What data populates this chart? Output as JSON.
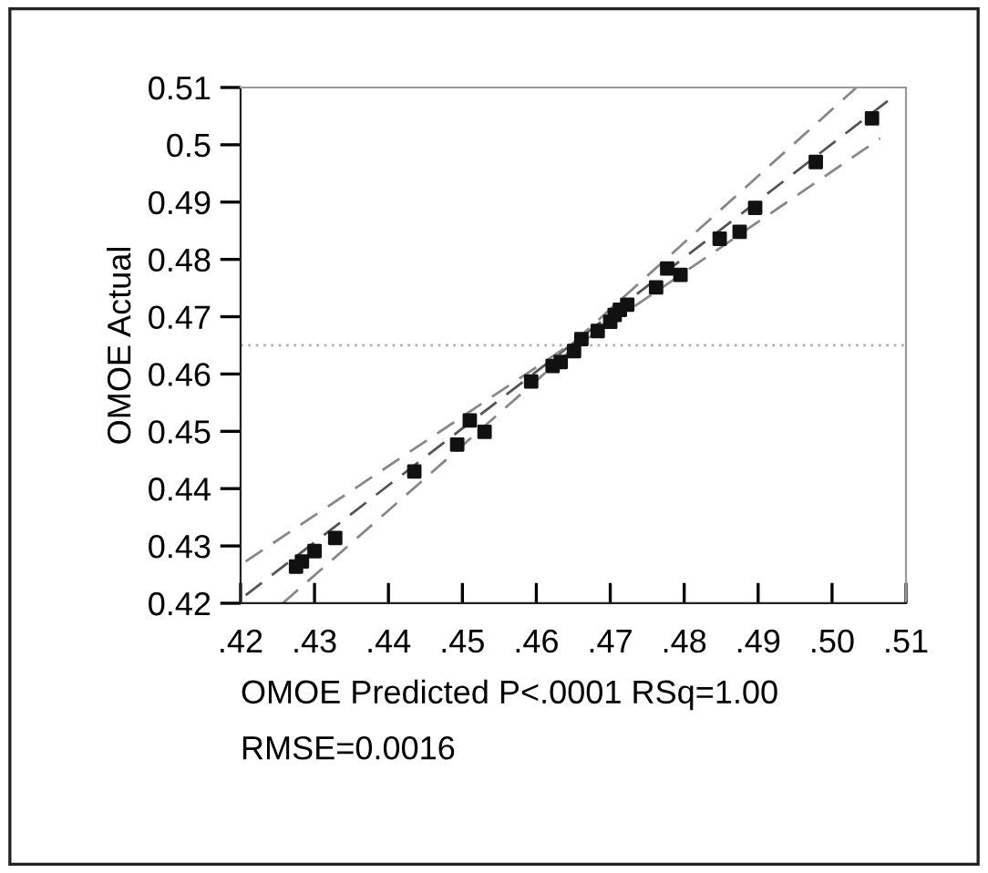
{
  "chart_data": {
    "type": "scatter",
    "xlabel": "OMOE Predicted P<.0001 RSq=1.00",
    "ylabel": "OMOE Actual",
    "annotations": [
      "RMSE=0.0016"
    ],
    "xlim": [
      0.42,
      0.51
    ],
    "ylim": [
      0.42,
      0.51
    ],
    "xticks": [
      {
        "value": 0.42,
        "label": ".42"
      },
      {
        "value": 0.43,
        "label": ".43"
      },
      {
        "value": 0.44,
        "label": ".44"
      },
      {
        "value": 0.45,
        "label": ".45"
      },
      {
        "value": 0.46,
        "label": ".46"
      },
      {
        "value": 0.47,
        "label": ".47"
      },
      {
        "value": 0.48,
        "label": ".48"
      },
      {
        "value": 0.49,
        "label": ".49"
      },
      {
        "value": 0.5,
        "label": ".50"
      },
      {
        "value": 0.51,
        "label": ".51"
      }
    ],
    "yticks": [
      0.42,
      0.43,
      0.44,
      0.45,
      0.46,
      0.47,
      0.48,
      0.49,
      0.5,
      0.51
    ],
    "grid": false,
    "legend": false,
    "marker": "square",
    "ref_lines": [
      {
        "axis": "y",
        "value": 0.465,
        "color": "#b0b0b0",
        "line_style": "dotted"
      }
    ],
    "series": [
      {
        "color": "#111111",
        "x": [
          0.4275,
          0.4283,
          0.43,
          0.4328,
          0.4435,
          0.4493,
          0.451,
          0.453,
          0.4593,
          0.4622,
          0.4633,
          0.4651,
          0.4661,
          0.4683,
          0.47,
          0.4706,
          0.4713,
          0.4723,
          0.4762,
          0.4777,
          0.4795,
          0.4848,
          0.4875,
          0.4896,
          0.4978,
          0.5054
        ],
        "values": [
          0.4264,
          0.4273,
          0.4291,
          0.4314,
          0.443,
          0.4477,
          0.4519,
          0.4499,
          0.4587,
          0.4614,
          0.4621,
          0.464,
          0.4661,
          0.4675,
          0.4691,
          0.4703,
          0.4712,
          0.4721,
          0.4751,
          0.4784,
          0.4773,
          0.4836,
          0.4848,
          0.489,
          0.497,
          0.5046
        ]
      },
      {
        "type": "line",
        "color": "#555555",
        "line_style": "dashed",
        "marker": "none",
        "x": [
          0.4207,
          0.5083
        ],
        "values": [
          0.4214,
          0.5084
        ]
      },
      {
        "type": "line",
        "color": "#888888",
        "line_style": "dashed",
        "marker": "none",
        "x": [
          0.4207,
          0.465,
          0.5033
        ],
        "values": [
          0.4273,
          0.4655,
          0.51
        ]
      },
      {
        "type": "line",
        "color": "#888888",
        "line_style": "dashed",
        "marker": "none",
        "x": [
          0.4257,
          0.465,
          0.5065
        ],
        "values": [
          0.42,
          0.4645,
          0.5011
        ]
      }
    ]
  }
}
